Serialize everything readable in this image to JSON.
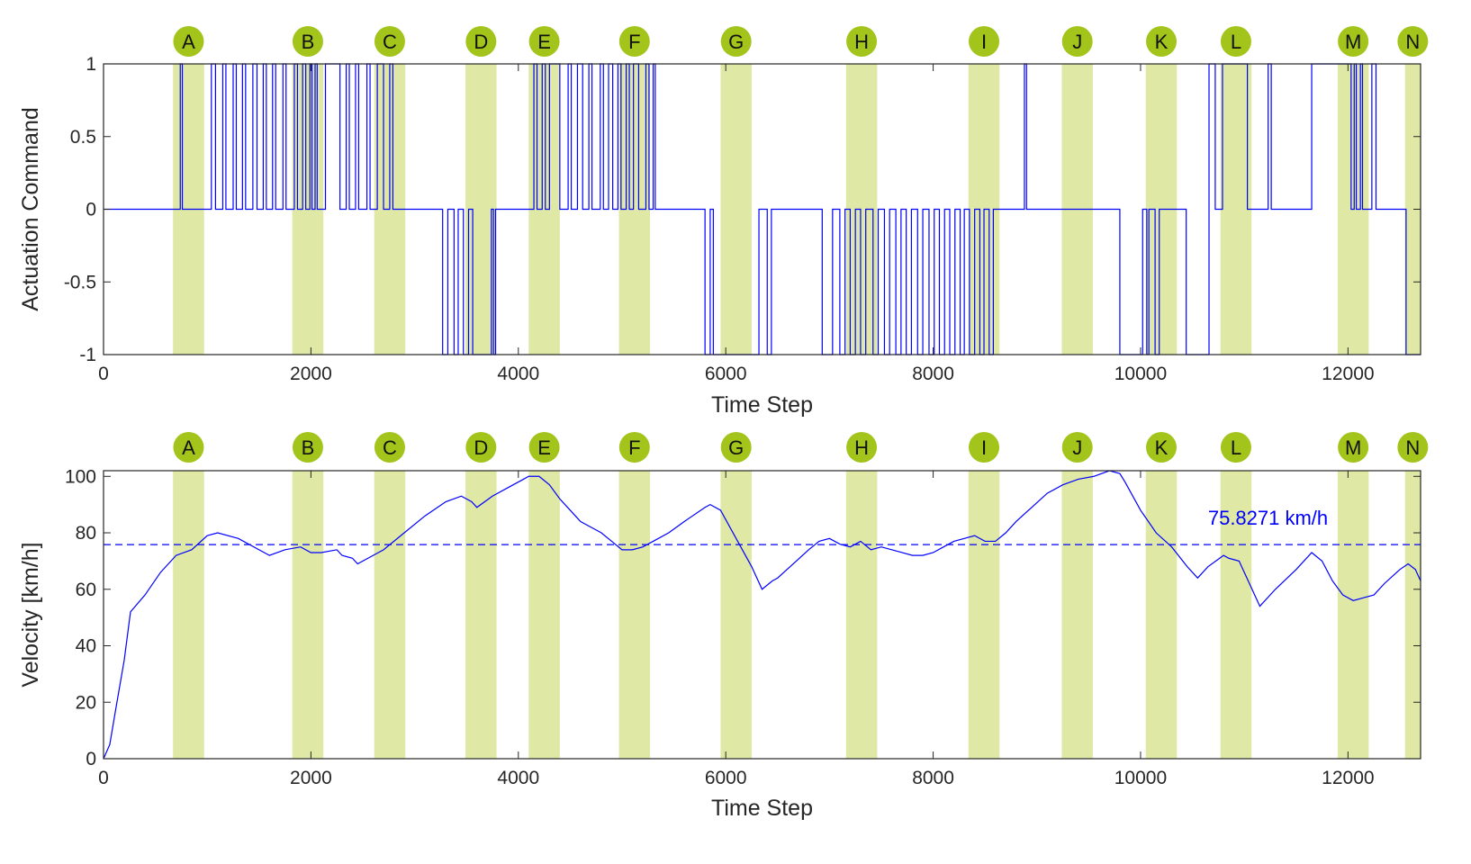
{
  "chart_data": [
    {
      "type": "line",
      "title": "",
      "xlabel": "Time Step",
      "ylabel": "Actuation Command",
      "xlim": [
        0,
        12700
      ],
      "ylim": [
        -1,
        1
      ],
      "xticks": [
        0,
        2000,
        4000,
        6000,
        8000,
        10000,
        12000
      ],
      "yticks": [
        -1,
        -0.5,
        0,
        0.5,
        1
      ],
      "ytick_labels": [
        "-1",
        "-0.5",
        "0",
        "0.5",
        "1"
      ],
      "grid": false,
      "regions": [
        {
          "label": "A",
          "start": 670,
          "end": 970
        },
        {
          "label": "B",
          "start": 1820,
          "end": 2120
        },
        {
          "label": "C",
          "start": 2610,
          "end": 2910
        },
        {
          "label": "D",
          "start": 3490,
          "end": 3790
        },
        {
          "label": "E",
          "start": 4100,
          "end": 4400
        },
        {
          "label": "F",
          "start": 4970,
          "end": 5270
        },
        {
          "label": "G",
          "start": 5950,
          "end": 6250
        },
        {
          "label": "H",
          "start": 7160,
          "end": 7460
        },
        {
          "label": "I",
          "start": 8340,
          "end": 8640
        },
        {
          "label": "J",
          "start": 9240,
          "end": 9540
        },
        {
          "label": "K",
          "start": 10050,
          "end": 10350
        },
        {
          "label": "L",
          "start": 10770,
          "end": 11070
        },
        {
          "label": "M",
          "start": 11900,
          "end": 12200
        },
        {
          "label": "N",
          "start": 12550,
          "end": 12700
        }
      ],
      "series": [
        {
          "name": "Actuation Command",
          "color": "#0000ff",
          "step": true,
          "segments": [
            [
              0,
              0
            ],
            [
              740,
              1
            ],
            [
              760,
              0
            ],
            [
              1040,
              1
            ],
            [
              1080,
              0
            ],
            [
              1150,
              1
            ],
            [
              1180,
              0
            ],
            [
              1250,
              1
            ],
            [
              1280,
              0
            ],
            [
              1340,
              1
            ],
            [
              1370,
              0
            ],
            [
              1440,
              1
            ],
            [
              1480,
              0
            ],
            [
              1540,
              1
            ],
            [
              1570,
              0
            ],
            [
              1630,
              1
            ],
            [
              1660,
              0
            ],
            [
              1730,
              1
            ],
            [
              1760,
              0
            ],
            [
              1840,
              1
            ],
            [
              1870,
              0
            ],
            [
              1920,
              1
            ],
            [
              1950,
              0
            ],
            [
              1990,
              1
            ],
            [
              2010,
              0
            ],
            [
              2040,
              1
            ],
            [
              2060,
              0
            ],
            [
              2140,
              1
            ],
            [
              2280,
              0
            ],
            [
              2340,
              1
            ],
            [
              2370,
              0
            ],
            [
              2430,
              1
            ],
            [
              2460,
              0
            ],
            [
              2540,
              1
            ],
            [
              2570,
              0
            ],
            [
              2640,
              1
            ],
            [
              2700,
              0
            ],
            [
              2760,
              1
            ],
            [
              2790,
              0
            ],
            [
              3270,
              -1
            ],
            [
              3320,
              0
            ],
            [
              3380,
              -1
            ],
            [
              3420,
              0
            ],
            [
              3470,
              -1
            ],
            [
              3520,
              0
            ],
            [
              3560,
              -1
            ],
            [
              3740,
              0
            ],
            [
              3760,
              -1
            ],
            [
              3780,
              0
            ],
            [
              4150,
              1
            ],
            [
              4180,
              0
            ],
            [
              4230,
              1
            ],
            [
              4260,
              0
            ],
            [
              4300,
              1
            ],
            [
              4400,
              0
            ],
            [
              4480,
              1
            ],
            [
              4510,
              0
            ],
            [
              4570,
              1
            ],
            [
              4620,
              0
            ],
            [
              4680,
              1
            ],
            [
              4710,
              0
            ],
            [
              4790,
              1
            ],
            [
              4820,
              0
            ],
            [
              4870,
              1
            ],
            [
              4910,
              0
            ],
            [
              4960,
              1
            ],
            [
              4990,
              0
            ],
            [
              5040,
              1
            ],
            [
              5070,
              0
            ],
            [
              5110,
              1
            ],
            [
              5160,
              0
            ],
            [
              5230,
              1
            ],
            [
              5260,
              0
            ],
            [
              5300,
              1
            ],
            [
              5320,
              0
            ],
            [
              5800,
              -1
            ],
            [
              5850,
              0
            ],
            [
              5880,
              -1
            ],
            [
              6320,
              0
            ],
            [
              6400,
              -1
            ],
            [
              6440,
              0
            ],
            [
              6930,
              -1
            ],
            [
              7030,
              0
            ],
            [
              7100,
              -1
            ],
            [
              7150,
              0
            ],
            [
              7200,
              -1
            ],
            [
              7250,
              0
            ],
            [
              7300,
              -1
            ],
            [
              7350,
              0
            ],
            [
              7420,
              -1
            ],
            [
              7470,
              0
            ],
            [
              7530,
              -1
            ],
            [
              7580,
              0
            ],
            [
              7640,
              -1
            ],
            [
              7690,
              0
            ],
            [
              7740,
              -1
            ],
            [
              7790,
              0
            ],
            [
              7850,
              -1
            ],
            [
              7900,
              0
            ],
            [
              7960,
              -1
            ],
            [
              8010,
              0
            ],
            [
              8060,
              -1
            ],
            [
              8110,
              0
            ],
            [
              8160,
              -1
            ],
            [
              8210,
              0
            ],
            [
              8260,
              -1
            ],
            [
              8300,
              0
            ],
            [
              8350,
              -1
            ],
            [
              8400,
              0
            ],
            [
              8450,
              -1
            ],
            [
              8490,
              0
            ],
            [
              8540,
              -1
            ],
            [
              8580,
              0
            ],
            [
              8880,
              1
            ],
            [
              8900,
              0
            ],
            [
              9800,
              -1
            ],
            [
              10020,
              0
            ],
            [
              10060,
              -1
            ],
            [
              10080,
              0
            ],
            [
              10140,
              -1
            ],
            [
              10180,
              0
            ],
            [
              10440,
              -1
            ],
            [
              10660,
              0
            ],
            [
              10660,
              1
            ],
            [
              10720,
              0
            ],
            [
              10790,
              1
            ],
            [
              11030,
              0
            ],
            [
              11230,
              1
            ],
            [
              11260,
              0
            ],
            [
              11650,
              1
            ],
            [
              12030,
              0
            ],
            [
              12060,
              1
            ],
            [
              12080,
              0
            ],
            [
              12120,
              1
            ],
            [
              12140,
              0
            ],
            [
              12230,
              1
            ],
            [
              12270,
              0
            ],
            [
              12560,
              -1
            ],
            [
              12700,
              -1
            ]
          ]
        }
      ]
    },
    {
      "type": "line",
      "title": "",
      "xlabel": "Time Step",
      "ylabel": "Velocity [km/h]",
      "xlim": [
        0,
        12700
      ],
      "ylim": [
        0,
        102
      ],
      "xticks": [
        0,
        2000,
        4000,
        6000,
        8000,
        10000,
        12000
      ],
      "yticks": [
        0,
        20,
        40,
        60,
        80,
        100
      ],
      "ytick_labels": [
        "0",
        "20",
        "40",
        "60",
        "80",
        "100"
      ],
      "grid": false,
      "reference_line": {
        "value": 75.8271,
        "style": "dashed",
        "label": "75.8271 km/h"
      },
      "series": [
        {
          "name": "Velocity",
          "color": "#0000ff",
          "points": [
            [
              0,
              0
            ],
            [
              60,
              5
            ],
            [
              120,
              18
            ],
            [
              200,
              35
            ],
            [
              260,
              52
            ],
            [
              400,
              58
            ],
            [
              550,
              66
            ],
            [
              700,
              72
            ],
            [
              850,
              74
            ],
            [
              1000,
              79
            ],
            [
              1100,
              80
            ],
            [
              1300,
              78
            ],
            [
              1500,
              74
            ],
            [
              1600,
              72
            ],
            [
              1750,
              74
            ],
            [
              1900,
              75
            ],
            [
              2000,
              73
            ],
            [
              2100,
              73
            ],
            [
              2250,
              74
            ],
            [
              2300,
              72
            ],
            [
              2400,
              71
            ],
            [
              2450,
              69
            ],
            [
              2600,
              72
            ],
            [
              2700,
              74
            ],
            [
              2900,
              80
            ],
            [
              3100,
              86
            ],
            [
              3300,
              91
            ],
            [
              3450,
              93
            ],
            [
              3550,
              91
            ],
            [
              3600,
              89
            ],
            [
              3750,
              93
            ],
            [
              3900,
              96
            ],
            [
              4050,
              99
            ],
            [
              4100,
              100
            ],
            [
              4200,
              100
            ],
            [
              4300,
              97
            ],
            [
              4400,
              92
            ],
            [
              4500,
              88
            ],
            [
              4600,
              84
            ],
            [
              4700,
              82
            ],
            [
              4800,
              80
            ],
            [
              4900,
              77
            ],
            [
              5000,
              74
            ],
            [
              5100,
              74
            ],
            [
              5200,
              75
            ],
            [
              5300,
              77
            ],
            [
              5450,
              80
            ],
            [
              5600,
              84
            ],
            [
              5800,
              89
            ],
            [
              5850,
              90
            ],
            [
              5950,
              88
            ],
            [
              6100,
              78
            ],
            [
              6250,
              68
            ],
            [
              6350,
              60
            ],
            [
              6450,
              63
            ],
            [
              6500,
              64
            ],
            [
              6650,
              69
            ],
            [
              6800,
              74
            ],
            [
              6900,
              77
            ],
            [
              7000,
              78
            ],
            [
              7100,
              76
            ],
            [
              7200,
              75
            ],
            [
              7300,
              77
            ],
            [
              7400,
              74
            ],
            [
              7500,
              75
            ],
            [
              7600,
              74
            ],
            [
              7700,
              73
            ],
            [
              7800,
              72
            ],
            [
              7900,
              72
            ],
            [
              8000,
              73
            ],
            [
              8100,
              75
            ],
            [
              8200,
              77
            ],
            [
              8300,
              78
            ],
            [
              8400,
              79
            ],
            [
              8500,
              77
            ],
            [
              8600,
              77
            ],
            [
              8700,
              80
            ],
            [
              8800,
              84
            ],
            [
              8950,
              89
            ],
            [
              9100,
              94
            ],
            [
              9250,
              97
            ],
            [
              9400,
              99
            ],
            [
              9550,
              100
            ],
            [
              9700,
              102
            ],
            [
              9800,
              101
            ],
            [
              9850,
              98
            ],
            [
              10000,
              88
            ],
            [
              10150,
              80
            ],
            [
              10300,
              75
            ],
            [
              10450,
              68
            ],
            [
              10550,
              64
            ],
            [
              10650,
              68
            ],
            [
              10800,
              72
            ],
            [
              10850,
              71
            ],
            [
              10950,
              70
            ],
            [
              11050,
              62
            ],
            [
              11150,
              54
            ],
            [
              11300,
              60
            ],
            [
              11500,
              67
            ],
            [
              11650,
              73
            ],
            [
              11750,
              70
            ],
            [
              11850,
              63
            ],
            [
              11950,
              58
            ],
            [
              12050,
              56
            ],
            [
              12150,
              57
            ],
            [
              12250,
              58
            ],
            [
              12350,
              62
            ],
            [
              12500,
              67
            ],
            [
              12580,
              69
            ],
            [
              12650,
              67
            ],
            [
              12700,
              63
            ]
          ]
        }
      ]
    }
  ]
}
